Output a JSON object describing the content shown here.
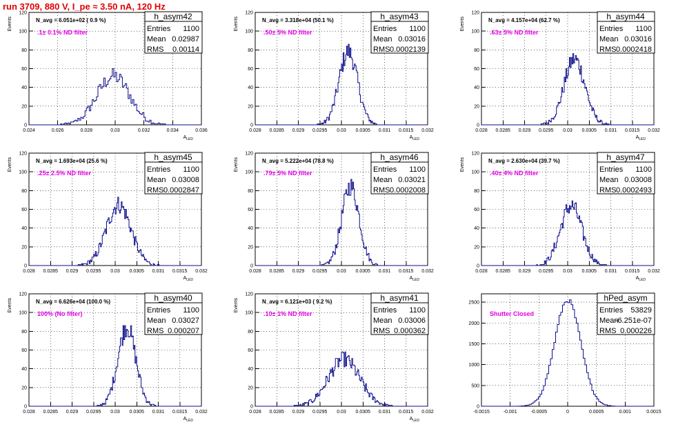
{
  "header": {
    "run_title": "run 3709,   880 V, I_pe ≈ 3.50 nA, 120 Hz"
  },
  "colors": {
    "histogram": "#0b0b8a",
    "title": "#e00000",
    "annotation": "#e000e0"
  },
  "chart_data": [
    {
      "type": "histogram",
      "name": "h_asym42",
      "entries": "1100",
      "mean": "0.02987",
      "rms": "0.00114",
      "navg": "N_avg = 6.051e+02 ( 0.9 %)",
      "filter": ".1± 0.1% ND filter",
      "ylabel": "Events",
      "xlabel": "A_LED",
      "ylim": [
        0,
        120
      ],
      "yticks": [
        0,
        20,
        40,
        60,
        80,
        100,
        120
      ],
      "xlim": [
        0.024,
        0.036
      ],
      "xticks": [
        "0.024",
        "0.026",
        "0.028",
        "0.03",
        "0.032",
        "0.034",
        "0.036"
      ],
      "dist": {
        "mu": 0.02987,
        "sigma": 0.00114,
        "peak": 52,
        "bins": 120
      }
    },
    {
      "type": "histogram",
      "name": "h_asym43",
      "entries": "1100",
      "mean": "0.03016",
      "rms": "0.0002139",
      "navg": "N_avg = 3.318e+04 (50.1 %)",
      "filter": ".50± 5% ND filter",
      "ylabel": "Events",
      "xlabel": "A_LED",
      "ylim": [
        0,
        120
      ],
      "yticks": [
        0,
        20,
        40,
        60,
        80,
        100,
        120
      ],
      "xlim": [
        0.028,
        0.032
      ],
      "xticks": [
        "0.028",
        "0.0285",
        "0.029",
        "0.0295",
        "0.03",
        "0.0305",
        "0.031",
        "0.0315",
        "0.032"
      ],
      "dist": {
        "mu": 0.03016,
        "sigma": 0.0002139,
        "peak": 78,
        "bins": 200
      }
    },
    {
      "type": "histogram",
      "name": "h_asym44",
      "entries": "1100",
      "mean": "0.03016",
      "rms": "0.0002418",
      "navg": "N_avg = 4.157e+04 (62.7 %)",
      "filter": ".63± 5% ND filter",
      "ylabel": "Events",
      "xlabel": "A_LED",
      "ylim": [
        0,
        120
      ],
      "yticks": [
        0,
        20,
        40,
        60,
        80,
        100,
        120
      ],
      "xlim": [
        0.028,
        0.032
      ],
      "xticks": [
        "0.028",
        "0.0285",
        "0.029",
        "0.0295",
        "0.03",
        "0.0305",
        "0.031",
        "0.0315",
        "0.032"
      ],
      "dist": {
        "mu": 0.03016,
        "sigma": 0.0002418,
        "peak": 70,
        "bins": 200
      }
    },
    {
      "type": "histogram",
      "name": "h_asym45",
      "entries": "1100",
      "mean": "0.03008",
      "rms": "0.0002847",
      "navg": "N_avg = 1.693e+04 (25.6 %)",
      "filter": ".25± 2.5% ND filter",
      "ylabel": "Events",
      "xlabel": "A_LED",
      "ylim": [
        0,
        120
      ],
      "yticks": [
        0,
        20,
        40,
        60,
        80,
        100,
        120
      ],
      "xlim": [
        0.028,
        0.032
      ],
      "xticks": [
        "0.028",
        "0.0285",
        "0.029",
        "0.0295",
        "0.03",
        "0.0305",
        "0.031",
        "0.0315",
        "0.032"
      ],
      "dist": {
        "mu": 0.03008,
        "sigma": 0.0002847,
        "peak": 65,
        "bins": 200
      }
    },
    {
      "type": "histogram",
      "name": "h_asym46",
      "entries": "1100",
      "mean": "0.03021",
      "rms": "0.0002008",
      "navg": "N_avg = 5.222e+04 (78.8 %)",
      "filter": ".79± 5% ND filter",
      "ylabel": "Events",
      "xlabel": "A_LED",
      "ylim": [
        0,
        120
      ],
      "yticks": [
        0,
        20,
        40,
        60,
        80,
        100,
        120
      ],
      "xlim": [
        0.028,
        0.032
      ],
      "xticks": [
        "0.028",
        "0.0285",
        "0.029",
        "0.0295",
        "0.03",
        "0.0305",
        "0.031",
        "0.0315",
        "0.032"
      ],
      "dist": {
        "mu": 0.03021,
        "sigma": 0.0002008,
        "peak": 85,
        "bins": 200
      }
    },
    {
      "type": "histogram",
      "name": "h_asym47",
      "entries": "1100",
      "mean": "0.03008",
      "rms": "0.0002493",
      "navg": "N_avg = 2.630e+04 (39.7 %)",
      "filter": ".40± 4% ND filter",
      "ylabel": "Events",
      "xlabel": "A_LED",
      "ylim": [
        0,
        120
      ],
      "yticks": [
        0,
        20,
        40,
        60,
        80,
        100,
        120
      ],
      "xlim": [
        0.028,
        0.032
      ],
      "xticks": [
        "0.028",
        "0.0285",
        "0.029",
        "0.0295",
        "0.03",
        "0.0305",
        "0.031",
        "0.0315",
        "0.032"
      ],
      "dist": {
        "mu": 0.03008,
        "sigma": 0.0002493,
        "peak": 64,
        "bins": 200
      }
    },
    {
      "type": "histogram",
      "name": "h_asym40",
      "entries": "1100",
      "mean": "0.03027",
      "rms": "0.000207",
      "navg": "N_avg = 6.626e+04 (100.0 %)",
      "filter": "100% (No filter)",
      "ylabel": "Events",
      "xlabel": "A_LED",
      "ylim": [
        0,
        120
      ],
      "yticks": [
        0,
        20,
        40,
        60,
        80,
        100,
        120
      ],
      "xlim": [
        0.028,
        0.032
      ],
      "xticks": [
        "0.028",
        "0.0285",
        "0.029",
        "0.0295",
        "0.03",
        "0.0305",
        "0.031",
        "0.0315",
        "0.032"
      ],
      "dist": {
        "mu": 0.03027,
        "sigma": 0.000207,
        "peak": 85,
        "bins": 200
      }
    },
    {
      "type": "histogram",
      "name": "h_asym41",
      "entries": "1100",
      "mean": "0.03006",
      "rms": "0.000362",
      "navg": "N_avg = 6.121e+03 ( 9.2 %)",
      "filter": ".10± 1% ND filter",
      "ylabel": "Events",
      "xlabel": "A_LED",
      "ylim": [
        0,
        120
      ],
      "yticks": [
        0,
        20,
        40,
        60,
        80,
        100,
        120
      ],
      "xlim": [
        0.028,
        0.032
      ],
      "xticks": [
        "0.028",
        "0.0285",
        "0.029",
        "0.0295",
        "0.03",
        "0.0305",
        "0.031",
        "0.0315",
        "0.032"
      ],
      "dist": {
        "mu": 0.03006,
        "sigma": 0.000362,
        "peak": 50,
        "bins": 200
      }
    },
    {
      "type": "histogram",
      "name": "hPed_asym",
      "entries": "53829",
      "mean": "-6.251e-07",
      "rms": "0.000226",
      "navg": "",
      "filter": "Shutter Closed",
      "ylabel": "",
      "xlabel": "",
      "ylim": [
        0,
        2700
      ],
      "yticks": [
        0,
        500,
        1000,
        1500,
        2000,
        2500
      ],
      "xlim": [
        -0.0015,
        0.0015
      ],
      "xticks": [
        "-0.0015",
        "-0.001",
        "-0.0005",
        "0",
        "0.0005",
        "0.001",
        "0.0015"
      ],
      "dist": {
        "mu": 0.0,
        "sigma": 0.000226,
        "peak": 2550,
        "bins": 100
      }
    }
  ]
}
